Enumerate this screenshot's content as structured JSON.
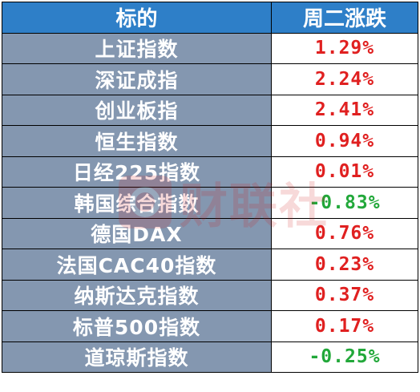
{
  "table": {
    "header": {
      "name_col": "标的",
      "change_col": "周二涨跌"
    },
    "rows": [
      {
        "name": "上证指数",
        "change": "1.29%",
        "direction": "up"
      },
      {
        "name": "深证成指",
        "change": "2.24%",
        "direction": "up"
      },
      {
        "name": "创业板指",
        "change": "2.41%",
        "direction": "up"
      },
      {
        "name": "恒生指数",
        "change": "0.94%",
        "direction": "up"
      },
      {
        "name": "日经225指数",
        "change": "0.01%",
        "direction": "up"
      },
      {
        "name": "韩国综合指数",
        "change": "-0.83%",
        "direction": "down"
      },
      {
        "name": "德国DAX",
        "change": "0.76%",
        "direction": "up"
      },
      {
        "name": "法国CAC40指数",
        "change": "0.23%",
        "direction": "up"
      },
      {
        "name": "纳斯达克指数",
        "change": "0.37%",
        "direction": "up"
      },
      {
        "name": "标普500指数",
        "change": "0.17%",
        "direction": "up"
      },
      {
        "name": "道琼斯指数",
        "change": "-0.25%",
        "direction": "down"
      }
    ]
  },
  "colors": {
    "header_bg": "#2e7fc8",
    "name_bg": "#8497b0",
    "up": "#e02020",
    "down": "#22a83a"
  },
  "watermark": {
    "text": "财联社",
    "icon": "cls-logo-icon"
  }
}
